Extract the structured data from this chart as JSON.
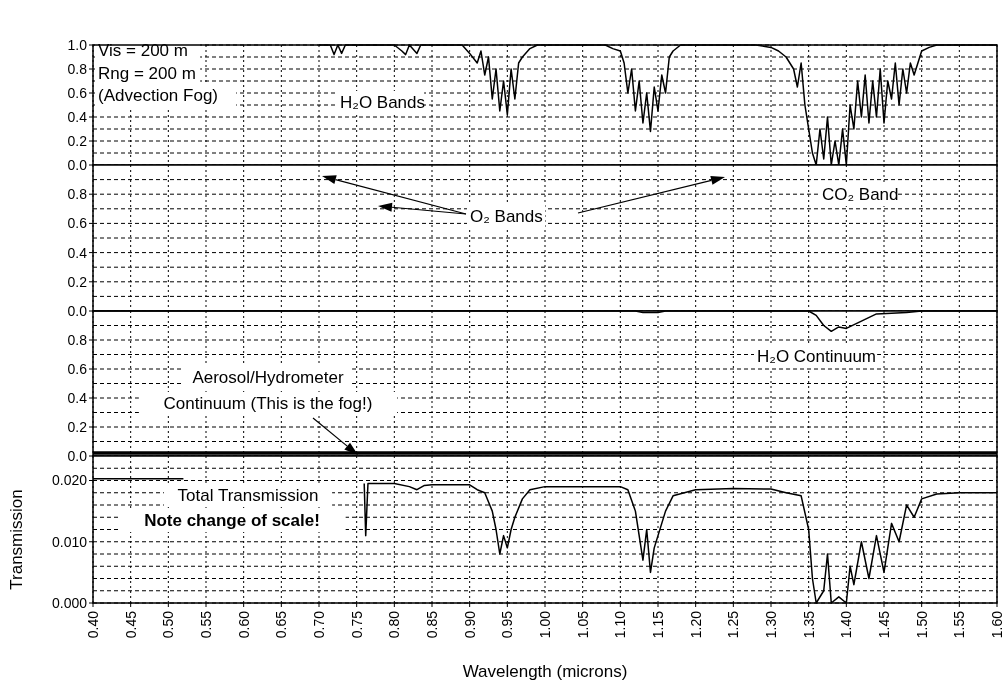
{
  "chart_data": [
    {
      "type": "line",
      "annotations": [
        "Vis = 200 m",
        "Rng = 200 m",
        "(Advection Fog)",
        "H₂O Bands"
      ],
      "xlim": [
        0.4,
        1.6
      ],
      "ylim": [
        0,
        1.0
      ],
      "grid": true,
      "tick_labels": "y",
      "line_style": "solid",
      "xticks": [
        0.4,
        0.45,
        0.5,
        0.55,
        0.6,
        0.65,
        0.7,
        0.75,
        0.8,
        0.85,
        0.9,
        0.95,
        1.0,
        1.05,
        1.1,
        1.15,
        1.2,
        1.25,
        1.3,
        1.35,
        1.4,
        1.45,
        1.5,
        1.55,
        1.6
      ],
      "yticks": [
        {
          "value": 0,
          "label": "0.0"
        },
        {
          "value": 0.1,
          "label": null
        },
        {
          "value": 0.2,
          "label": "0.2"
        },
        {
          "value": 0.3,
          "label": null
        },
        {
          "value": 0.4,
          "label": "0.4"
        },
        {
          "value": 0.5,
          "label": null
        },
        {
          "value": 0.6,
          "label": "0.6"
        },
        {
          "value": 0.7,
          "label": null
        },
        {
          "value": 0.8,
          "label": "0.8"
        },
        {
          "value": 0.9,
          "label": null
        },
        {
          "value": 1.0,
          "label": "1.0"
        }
      ],
      "series": [
        {
          "color": "#000000",
          "x": [
            0.7,
            0.715,
            0.72,
            0.725,
            0.73,
            0.735,
            0.8,
            0.81,
            0.815,
            0.82,
            0.83,
            0.835,
            0.89,
            0.9,
            0.91,
            0.915,
            0.92,
            0.925,
            0.93,
            0.935,
            0.94,
            0.945,
            0.95,
            0.955,
            0.96,
            0.965,
            0.97,
            0.98,
            0.99,
            1.08,
            1.09,
            1.1,
            1.105,
            1.11,
            1.115,
            1.12,
            1.125,
            1.13,
            1.135,
            1.14,
            1.145,
            1.15,
            1.155,
            1.16,
            1.165,
            1.17,
            1.18,
            1.28,
            1.3,
            1.31,
            1.32,
            1.33,
            1.335,
            1.34,
            1.345,
            1.35,
            1.355,
            1.36,
            1.365,
            1.37,
            1.375,
            1.38,
            1.385,
            1.39,
            1.395,
            1.4,
            1.405,
            1.41,
            1.415,
            1.42,
            1.425,
            1.43,
            1.435,
            1.44,
            1.445,
            1.45,
            1.455,
            1.46,
            1.465,
            1.47,
            1.475,
            1.48,
            1.485,
            1.49,
            1.5,
            1.51,
            1.52,
            1.6
          ],
          "values": [
            1.0,
            1.0,
            0.92,
            1.0,
            0.93,
            1.0,
            1.0,
            0.95,
            0.92,
            1.0,
            0.93,
            1.0,
            1.0,
            0.93,
            0.85,
            0.95,
            0.75,
            0.9,
            0.55,
            0.8,
            0.45,
            0.7,
            0.42,
            0.8,
            0.55,
            0.85,
            0.9,
            0.97,
            1.0,
            1.0,
            0.97,
            0.95,
            0.85,
            0.6,
            0.8,
            0.45,
            0.7,
            0.35,
            0.6,
            0.28,
            0.65,
            0.45,
            0.75,
            0.6,
            0.9,
            0.95,
            1.0,
            1.0,
            0.98,
            0.95,
            0.9,
            0.8,
            0.65,
            0.85,
            0.5,
            0.3,
            0.1,
            0.0,
            0.3,
            0.05,
            0.4,
            0.0,
            0.2,
            0.0,
            0.3,
            0.0,
            0.5,
            0.3,
            0.7,
            0.4,
            0.75,
            0.35,
            0.7,
            0.4,
            0.8,
            0.35,
            0.7,
            0.55,
            0.85,
            0.5,
            0.8,
            0.6,
            0.85,
            0.75,
            0.95,
            0.98,
            1.0,
            1.0
          ]
        }
      ]
    },
    {
      "type": "line",
      "annotations": [
        "O₂ Bands",
        "CO₂ Band"
      ],
      "xlim": [
        0.4,
        1.6
      ],
      "ylim": [
        0,
        1.0
      ],
      "grid": true,
      "tick_labels": "y",
      "line_style": "solid",
      "xticks": [
        0.4,
        0.45,
        0.5,
        0.55,
        0.6,
        0.65,
        0.7,
        0.75,
        0.8,
        0.85,
        0.9,
        0.95,
        1.0,
        1.05,
        1.1,
        1.15,
        1.2,
        1.25,
        1.3,
        1.35,
        1.4,
        1.45,
        1.5,
        1.55,
        1.6
      ],
      "yticks": [
        {
          "value": 0,
          "label": "0.0"
        },
        {
          "value": 0.1,
          "label": null
        },
        {
          "value": 0.2,
          "label": "0.2"
        },
        {
          "value": 0.3,
          "label": null
        },
        {
          "value": 0.4,
          "label": "0.4"
        },
        {
          "value": 0.5,
          "label": null
        },
        {
          "value": 0.6,
          "label": "0.6"
        },
        {
          "value": 0.7,
          "label": null
        },
        {
          "value": 0.8,
          "label": "0.8"
        },
        {
          "value": 0.9,
          "label": null
        }
      ],
      "ylabel": null
    },
    {
      "type": "line",
      "annotations": [
        "H₂O Continuum",
        "Aerosol/Hydrometer",
        "Continuum (This is the fog!)"
      ],
      "xlim": [
        0.4,
        1.6
      ],
      "ylim": [
        0,
        1.0
      ],
      "grid": true,
      "tick_labels": "y",
      "line_style": "solid",
      "xticks": [
        0.4,
        0.45,
        0.5,
        0.55,
        0.6,
        0.65,
        0.7,
        0.75,
        0.8,
        0.85,
        0.9,
        0.95,
        1.0,
        1.05,
        1.1,
        1.15,
        1.2,
        1.25,
        1.3,
        1.35,
        1.4,
        1.45,
        1.5,
        1.55,
        1.6
      ],
      "yticks": [
        {
          "value": 0,
          "label": "0.0"
        },
        {
          "value": 0.1,
          "label": null
        },
        {
          "value": 0.2,
          "label": "0.2"
        },
        {
          "value": 0.3,
          "label": null
        },
        {
          "value": 0.4,
          "label": "0.4"
        },
        {
          "value": 0.5,
          "label": null
        },
        {
          "value": 0.6,
          "label": "0.6"
        },
        {
          "value": 0.7,
          "label": null
        },
        {
          "value": 0.8,
          "label": "0.8"
        },
        {
          "value": 0.9,
          "label": null
        }
      ],
      "series": [
        {
          "color": "#000000",
          "x": [
            0.4,
            1.12,
            1.13,
            1.15,
            1.16,
            1.35,
            1.36,
            1.37,
            1.38,
            1.39,
            1.4,
            1.42,
            1.44,
            1.48,
            1.5,
            1.6
          ],
          "values": [
            1.0,
            1.0,
            0.99,
            0.99,
            1.0,
            1.0,
            0.97,
            0.9,
            0.86,
            0.89,
            0.88,
            0.93,
            0.98,
            0.99,
            1.0,
            1.0
          ]
        },
        {
          "color": "#000000",
          "x": [
            0.4,
            1.4,
            1.6
          ],
          "values": [
            0.02,
            0.02,
            0.02
          ]
        }
      ]
    },
    {
      "type": "line",
      "annotations": [
        "Total Transmission",
        "Note change of scale!"
      ],
      "xlabel": "Wavelength (microns)",
      "ylabel": "Transmission",
      "xlim": [
        0.4,
        1.6
      ],
      "ylim": [
        0,
        0.024
      ],
      "grid": true,
      "line_style": "solid",
      "xticks": [
        {
          "value": 0.4,
          "label": "0.40"
        },
        {
          "value": 0.45,
          "label": "0.45"
        },
        {
          "value": 0.5,
          "label": "0.50"
        },
        {
          "value": 0.55,
          "label": "0.55"
        },
        {
          "value": 0.6,
          "label": "0.60"
        },
        {
          "value": 0.65,
          "label": "0.65"
        },
        {
          "value": 0.7,
          "label": "0.70"
        },
        {
          "value": 0.75,
          "label": "0.75"
        },
        {
          "value": 0.8,
          "label": "0.80"
        },
        {
          "value": 0.85,
          "label": "0.85"
        },
        {
          "value": 0.9,
          "label": "0.90"
        },
        {
          "value": 0.95,
          "label": "0.95"
        },
        {
          "value": 1.0,
          "label": "1.00"
        },
        {
          "value": 1.05,
          "label": "1.05"
        },
        {
          "value": 1.1,
          "label": "1.10"
        },
        {
          "value": 1.15,
          "label": "1.15"
        },
        {
          "value": 1.2,
          "label": "1.20"
        },
        {
          "value": 1.25,
          "label": "1.25"
        },
        {
          "value": 1.3,
          "label": "1.30"
        },
        {
          "value": 1.35,
          "label": "1.35"
        },
        {
          "value": 1.4,
          "label": "1.40"
        },
        {
          "value": 1.45,
          "label": "1.45"
        },
        {
          "value": 1.5,
          "label": "1.50"
        },
        {
          "value": 1.55,
          "label": "1.55"
        },
        {
          "value": 1.6,
          "label": "1.60"
        }
      ],
      "yticks": [
        {
          "value": 0,
          "label": "0.000"
        },
        {
          "value": 0.002,
          "label": null
        },
        {
          "value": 0.004,
          "label": null
        },
        {
          "value": 0.006,
          "label": null
        },
        {
          "value": 0.008,
          "label": null
        },
        {
          "value": 0.01,
          "label": "0.010"
        },
        {
          "value": 0.012,
          "label": null
        },
        {
          "value": 0.014,
          "label": null
        },
        {
          "value": 0.016,
          "label": null
        },
        {
          "value": 0.018,
          "label": null
        },
        {
          "value": 0.02,
          "label": "0.020"
        },
        {
          "value": 0.022,
          "label": null
        }
      ],
      "series": [
        {
          "color": "#000000",
          "x": [
            0.4,
            0.52,
            0.53,
            0.76,
            0.762,
            0.765,
            0.77,
            0.8,
            0.82,
            0.83,
            0.84,
            0.85,
            0.9,
            0.91,
            0.92,
            0.93,
            0.935,
            0.94,
            0.945,
            0.95,
            0.955,
            0.96,
            0.97,
            0.98,
            1.0,
            1.1,
            1.11,
            1.12,
            1.125,
            1.13,
            1.135,
            1.14,
            1.145,
            1.15,
            1.16,
            1.17,
            1.2,
            1.25,
            1.3,
            1.32,
            1.34,
            1.35,
            1.355,
            1.36,
            1.37,
            1.375,
            1.38,
            1.39,
            1.4,
            1.405,
            1.41,
            1.42,
            1.43,
            1.44,
            1.45,
            1.46,
            1.47,
            1.48,
            1.49,
            1.5,
            1.52,
            1.55,
            1.6
          ],
          "values": [
            0.0203,
            0.0203,
            null,
            0.0195,
            0.011,
            0.0195,
            0.0195,
            0.0195,
            0.019,
            0.0185,
            0.0192,
            0.0193,
            0.0193,
            0.0185,
            0.018,
            0.015,
            0.012,
            0.008,
            0.011,
            0.009,
            0.012,
            0.014,
            0.017,
            0.0185,
            0.019,
            0.019,
            0.0185,
            0.015,
            0.011,
            0.007,
            0.012,
            0.005,
            0.009,
            0.011,
            0.015,
            0.0175,
            0.0185,
            0.0187,
            0.0186,
            0.018,
            0.0175,
            0.012,
            0.004,
            0.0,
            0.002,
            0.008,
            0.0,
            0.001,
            0.0,
            0.006,
            0.003,
            0.01,
            0.004,
            0.011,
            0.005,
            0.013,
            0.01,
            0.016,
            0.014,
            0.017,
            0.0178,
            0.018,
            0.018
          ]
        }
      ]
    }
  ]
}
